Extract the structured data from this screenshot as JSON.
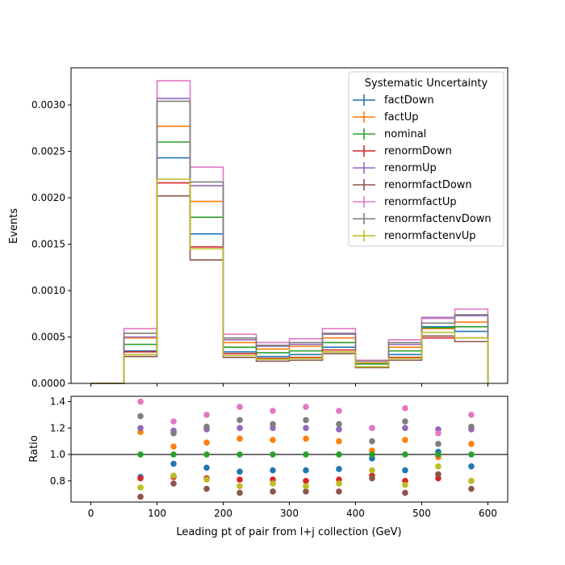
{
  "chart_data": [
    {
      "type": "line",
      "subtype": "step-histogram",
      "xlabel": "",
      "ylabel": "Events",
      "xlim": [
        -30,
        630
      ],
      "ylim": [
        0,
        0.0034
      ],
      "x_ticks": [
        0,
        100,
        200,
        300,
        400,
        500,
        600
      ],
      "y_ticks": [
        0,
        0.0005,
        0.001,
        0.0015,
        0.002,
        0.0025,
        0.003
      ],
      "y_tick_labels": [
        "0.0000",
        "0.0005",
        "0.0010",
        "0.0015",
        "0.0020",
        "0.0025",
        "0.0030"
      ],
      "bin_edges": [
        0,
        50,
        100,
        150,
        200,
        250,
        300,
        350,
        400,
        450,
        500,
        550,
        600
      ],
      "legend": {
        "title": "Systematic Uncertainty",
        "position": "top-right"
      },
      "series": [
        {
          "name": "factDown",
          "color": "#1f77b4",
          "values": [
            0,
            0.00035,
            0.00243,
            0.00161,
            0.00034,
            0.00029,
            0.00031,
            0.00039,
            0.00021,
            0.00031,
            0.00061,
            0.00056
          ]
        },
        {
          "name": "factUp",
          "color": "#ff7f0e",
          "values": [
            0,
            0.00049,
            0.00277,
            0.00196,
            0.00044,
            0.00037,
            0.0004,
            0.00049,
            0.00022,
            0.00039,
            0.00059,
            0.00066
          ]
        },
        {
          "name": "nominal",
          "color": "#2ca02c",
          "values": [
            0,
            0.00042,
            0.0026,
            0.00179,
            0.00039,
            0.00033,
            0.00035,
            0.00044,
            0.00021,
            0.00035,
            0.0006,
            0.00061
          ]
        },
        {
          "name": "renormDown",
          "color": "#d62728",
          "values": [
            0,
            0.00034,
            0.00216,
            0.00147,
            0.00032,
            0.00027,
            0.00028,
            0.00036,
            0.00018,
            0.00028,
            0.00049,
            0.00049
          ]
        },
        {
          "name": "renormUp",
          "color": "#9467bd",
          "values": [
            0,
            0.0005,
            0.00307,
            0.00213,
            0.00047,
            0.0004,
            0.00042,
            0.00053,
            0.00025,
            0.00042,
            0.00071,
            0.00073
          ]
        },
        {
          "name": "renormfactDown",
          "color": "#8c564b",
          "values": [
            0,
            0.00029,
            0.00202,
            0.00133,
            0.00028,
            0.00024,
            0.00025,
            0.00032,
            0.00017,
            0.00025,
            0.00051,
            0.00045
          ]
        },
        {
          "name": "renormfactUp",
          "color": "#e377c2",
          "values": [
            0,
            0.00059,
            0.00326,
            0.00233,
            0.00053,
            0.00044,
            0.00048,
            0.00059,
            0.00025,
            0.00047,
            0.0007,
            0.0008
          ]
        },
        {
          "name": "renormfactenvDown",
          "color": "#7f7f7f",
          "values": [
            0,
            0.00054,
            0.00304,
            0.00217,
            0.00049,
            0.00041,
            0.00044,
            0.00054,
            0.00024,
            0.00044,
            0.00065,
            0.00074
          ]
        },
        {
          "name": "renormfactenvUp",
          "color": "#bcbd22",
          "values": [
            0,
            0.00031,
            0.0022,
            0.00145,
            0.0003,
            0.00026,
            0.00027,
            0.00034,
            0.00018,
            0.00027,
            0.00055,
            0.00049
          ]
        }
      ]
    },
    {
      "type": "scatter",
      "xlabel": "Leading pt of pair from l+j collection (GeV)",
      "ylabel": "Ratio",
      "xlim": [
        -30,
        630
      ],
      "ylim": [
        0.64,
        1.44
      ],
      "x_ticks": [
        0,
        100,
        200,
        300,
        400,
        500,
        600
      ],
      "y_ticks": [
        0.8,
        1.0,
        1.2,
        1.4
      ],
      "y_tick_labels": [
        "0.8",
        "1.0",
        "1.2",
        "1.4"
      ],
      "reference_line": 1.0,
      "x": [
        75,
        125,
        175,
        225,
        275,
        325,
        375,
        425,
        475,
        525,
        575
      ],
      "series": [
        {
          "name": "factDown",
          "color": "#1f77b4",
          "values": [
            0.83,
            0.93,
            0.9,
            0.87,
            0.88,
            0.88,
            0.89,
            0.97,
            0.88,
            1.02,
            0.91
          ]
        },
        {
          "name": "factUp",
          "color": "#ff7f0e",
          "values": [
            1.17,
            1.06,
            1.09,
            1.12,
            1.11,
            1.12,
            1.1,
            1.03,
            1.11,
            0.98,
            1.08
          ]
        },
        {
          "name": "nominal",
          "color": "#2ca02c",
          "values": [
            1.0,
            1.0,
            1.0,
            1.0,
            1.0,
            1.0,
            1.0,
            1.0,
            1.0,
            1.0,
            1.0
          ]
        },
        {
          "name": "renormDown",
          "color": "#d62728",
          "values": [
            0.82,
            0.83,
            0.82,
            0.81,
            0.81,
            0.8,
            0.81,
            0.84,
            0.8,
            0.82,
            0.8
          ]
        },
        {
          "name": "renormUp",
          "color": "#9467bd",
          "values": [
            1.2,
            1.18,
            1.19,
            1.2,
            1.2,
            1.2,
            1.19,
            1.2,
            1.2,
            1.19,
            1.19
          ]
        },
        {
          "name": "renormfactDown",
          "color": "#8c564b",
          "values": [
            0.68,
            0.78,
            0.74,
            0.71,
            0.72,
            0.72,
            0.72,
            0.82,
            0.71,
            0.85,
            0.74
          ]
        },
        {
          "name": "renormfactUp",
          "color": "#e377c2",
          "values": [
            1.4,
            1.25,
            1.3,
            1.36,
            1.33,
            1.36,
            1.33,
            1.2,
            1.35,
            1.16,
            1.3
          ]
        },
        {
          "name": "renormfactenvDown",
          "color": "#7f7f7f",
          "values": [
            1.29,
            1.16,
            1.21,
            1.26,
            1.23,
            1.26,
            1.23,
            1.1,
            1.25,
            1.08,
            1.21
          ]
        },
        {
          "name": "renormfactenvUp",
          "color": "#bcbd22",
          "values": [
            0.75,
            0.84,
            0.81,
            0.76,
            0.78,
            0.76,
            0.78,
            0.88,
            0.77,
            0.91,
            0.8
          ]
        }
      ]
    }
  ]
}
